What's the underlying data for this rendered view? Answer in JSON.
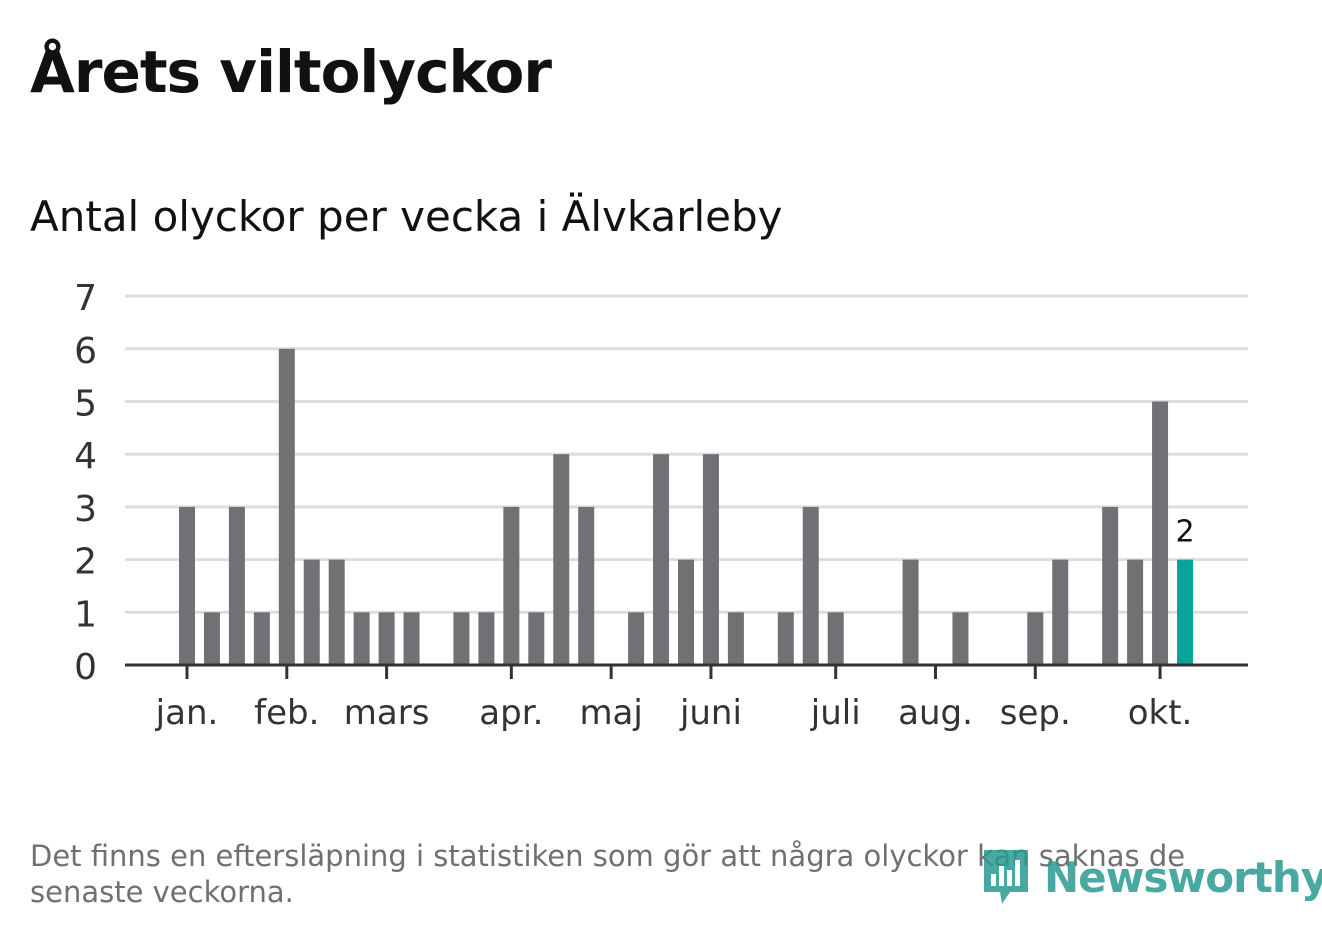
{
  "header": {
    "title": "Årets viltolyckor",
    "subtitle": "Antal olyckor per vecka i Älvkarleby"
  },
  "footnote": "Det finns en eftersläpning i statistiken som gör att några olyckor kan saknas de senaste veckorna.",
  "logo": {
    "text": "Newsworthy",
    "icon": "newsworthy-bar-icon"
  },
  "colors": {
    "bar": "#707075",
    "highlight": "#0aa59a",
    "grid": "#dddddd",
    "axis": "#333333",
    "text": "#333333"
  },
  "chart_data": {
    "type": "bar",
    "title": "Antal olyckor per vecka i Älvkarleby",
    "xlabel": "",
    "ylabel": "",
    "ylim": [
      0,
      7
    ],
    "yticks": [
      "0",
      "1",
      "2",
      "3",
      "4",
      "5",
      "6",
      "7"
    ],
    "month_labels": [
      {
        "label": "jan.",
        "week": 1
      },
      {
        "label": "feb.",
        "week": 5
      },
      {
        "label": "mars",
        "week": 9
      },
      {
        "label": "apr.",
        "week": 14
      },
      {
        "label": "maj",
        "week": 18
      },
      {
        "label": "juni",
        "week": 22
      },
      {
        "label": "juli",
        "week": 27
      },
      {
        "label": "aug.",
        "week": 31
      },
      {
        "label": "sep.",
        "week": 35
      },
      {
        "label": "okt.",
        "week": 40
      }
    ],
    "weeks": [
      1,
      2,
      3,
      4,
      5,
      6,
      7,
      8,
      9,
      10,
      11,
      12,
      13,
      14,
      15,
      16,
      17,
      18,
      19,
      20,
      21,
      22,
      23,
      24,
      25,
      26,
      27,
      28,
      29,
      30,
      31,
      32,
      33,
      34,
      35,
      36,
      37,
      38,
      39,
      40,
      41
    ],
    "values": [
      3,
      1,
      3,
      1,
      6,
      2,
      2,
      1,
      1,
      1,
      0,
      1,
      1,
      3,
      1,
      4,
      3,
      0,
      1,
      4,
      2,
      4,
      1,
      0,
      1,
      3,
      1,
      0,
      0,
      2,
      0,
      1,
      0,
      0,
      1,
      2,
      0,
      3,
      2,
      5,
      2
    ],
    "highlight_index": 40,
    "highlight_label": "2",
    "grid": true,
    "legend": "none"
  }
}
